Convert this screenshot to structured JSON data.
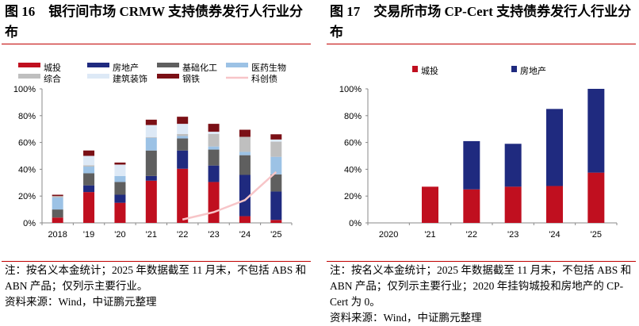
{
  "left": {
    "title": "图 16　银行间市场 CRMW 支持债券发行人行业分布",
    "note": "注：按名义本金统计；2025 年数据截至 11 月末，不包括 ABS 和 ABN 产品；仅列示主要行业。",
    "source": "资料来源：Wind，中证鹏元整理"
  },
  "right": {
    "title": "图 17　交易所市场 CP-Cert 支持债券发行人行业分布",
    "note": "注：按名义本金统计；2025 年数据截至 11 月末，不包括 ABS 和 ABN 产品；仅列示主要行业；2020 年挂钩城投和房地产的 CP-Cert 为 0。",
    "source": "资料来源：Wind，中证鹏元整理"
  },
  "chart_data": [
    {
      "type": "bar",
      "stacked": true,
      "categories": [
        "2018",
        "'19",
        "'20",
        "'21",
        "'22",
        "'23",
        "'24",
        "'25"
      ],
      "ylim": [
        0,
        100
      ],
      "yticks": [
        "0%",
        "20%",
        "40%",
        "60%",
        "80%",
        "100%"
      ],
      "legend_position": "top",
      "series": [
        {
          "name": "城投",
          "color": "#c00f1f",
          "values": [
            4,
            23,
            15,
            31.5,
            40.4,
            30.5,
            5,
            2.2
          ]
        },
        {
          "name": "房地产",
          "color": "#1f2a7f",
          "values": [
            0,
            5,
            6,
            3.5,
            13.6,
            12.3,
            30.8,
            21.2
          ]
        },
        {
          "name": "基础化工",
          "color": "#5f5f5f",
          "values": [
            6,
            9,
            9.5,
            19,
            9,
            11.9,
            14.7,
            12.8
          ]
        },
        {
          "name": "医药生物",
          "color": "#9cc2e5",
          "values": [
            9,
            5,
            4.5,
            9.5,
            1.8,
            2.3,
            2.5,
            13.1
          ]
        },
        {
          "name": "综合",
          "color": "#bfbfbf",
          "values": [
            1,
            1,
            0,
            0.5,
            1.5,
            9.3,
            11.2,
            11.3
          ]
        },
        {
          "name": "建筑装饰",
          "color": "#dde9f6",
          "values": [
            0,
            7,
            8.5,
            9,
            7.6,
            1.7,
            0,
            1.6
          ]
        },
        {
          "name": "钢铁",
          "color": "#7b1016",
          "values": [
            1,
            4,
            1.5,
            4,
            5.3,
            5.9,
            5.3,
            3.9
          ]
        }
      ],
      "line": {
        "name": "科创债",
        "color": "#f7c5c8",
        "values": [
          null,
          null,
          null,
          null,
          2.5,
          8,
          17,
          38
        ]
      }
    },
    {
      "type": "bar",
      "stacked": true,
      "categories": [
        "2020",
        "'21",
        "'22",
        "'23",
        "'24",
        "'25"
      ],
      "ylim": [
        0,
        100
      ],
      "yticks": [
        "0%",
        "20%",
        "40%",
        "60%",
        "80%",
        "100%"
      ],
      "legend_position": "top",
      "series": [
        {
          "name": "城投",
          "color": "#c00f1f",
          "values": [
            0,
            27,
            25,
            27,
            27.5,
            37.5
          ]
        },
        {
          "name": "房地产",
          "color": "#1f2a7f",
          "values": [
            0,
            0,
            36,
            32,
            57.5,
            62.5
          ]
        }
      ]
    }
  ]
}
